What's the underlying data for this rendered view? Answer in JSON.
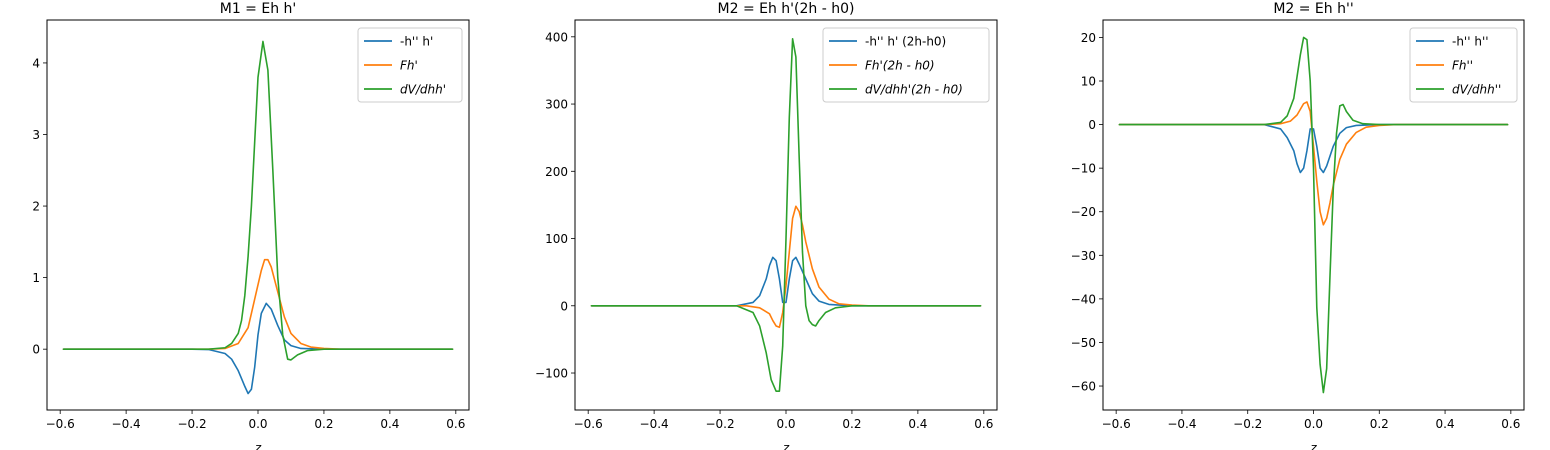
{
  "chart_data": [
    {
      "type": "line",
      "title": "M1 = Eh h'",
      "xlabel": "z",
      "ylabel": "",
      "xlim": [
        -0.64,
        0.64
      ],
      "ylim": [
        -0.85,
        4.6
      ],
      "xticks": [
        -0.6,
        -0.4,
        -0.2,
        0.0,
        0.2,
        0.4,
        0.6
      ],
      "xtick_labels": [
        "−0.6",
        "−0.4",
        "−0.2",
        "0.0",
        "0.2",
        "0.4",
        "0.6"
      ],
      "yticks": [
        0,
        1,
        2,
        3,
        4
      ],
      "ytick_labels": [
        "0",
        "1",
        "2",
        "3",
        "4"
      ],
      "legend_position": "top-right",
      "series": [
        {
          "name": "-h'' h'",
          "color": "#1f77b4",
          "points": [
            [
              -0.59,
              0
            ],
            [
              -0.2,
              0
            ],
            [
              -0.15,
              -0.005
            ],
            [
              -0.1,
              -0.06
            ],
            [
              -0.08,
              -0.14
            ],
            [
              -0.06,
              -0.3
            ],
            [
              -0.04,
              -0.52
            ],
            [
              -0.03,
              -0.62
            ],
            [
              -0.02,
              -0.56
            ],
            [
              -0.01,
              -0.25
            ],
            [
              0.0,
              0.2
            ],
            [
              0.01,
              0.5
            ],
            [
              0.025,
              0.64
            ],
            [
              0.04,
              0.56
            ],
            [
              0.06,
              0.33
            ],
            [
              0.08,
              0.13
            ],
            [
              0.1,
              0.05
            ],
            [
              0.13,
              0.01
            ],
            [
              0.2,
              0
            ],
            [
              0.59,
              0
            ]
          ]
        },
        {
          "name": "Fh'",
          "color": "#ff7f0e",
          "points": [
            [
              -0.59,
              0
            ],
            [
              -0.15,
              0
            ],
            [
              -0.1,
              0.01
            ],
            [
              -0.06,
              0.08
            ],
            [
              -0.03,
              0.3
            ],
            [
              -0.01,
              0.7
            ],
            [
              0.01,
              1.1
            ],
            [
              0.02,
              1.25
            ],
            [
              0.03,
              1.25
            ],
            [
              0.04,
              1.15
            ],
            [
              0.06,
              0.8
            ],
            [
              0.08,
              0.45
            ],
            [
              0.1,
              0.22
            ],
            [
              0.13,
              0.08
            ],
            [
              0.16,
              0.03
            ],
            [
              0.2,
              0.01
            ],
            [
              0.25,
              0
            ],
            [
              0.59,
              0
            ]
          ]
        },
        {
          "name": "dV/dhh'",
          "color": "#2ca02c",
          "points": [
            [
              -0.59,
              0
            ],
            [
              -0.15,
              0
            ],
            [
              -0.1,
              0.02
            ],
            [
              -0.08,
              0.08
            ],
            [
              -0.06,
              0.22
            ],
            [
              -0.05,
              0.4
            ],
            [
              -0.04,
              0.75
            ],
            [
              -0.03,
              1.3
            ],
            [
              -0.02,
              2.0
            ],
            [
              -0.01,
              2.9
            ],
            [
              0.0,
              3.8
            ],
            [
              0.015,
              4.3
            ],
            [
              0.03,
              3.9
            ],
            [
              0.045,
              2.5
            ],
            [
              0.06,
              1.0
            ],
            [
              0.075,
              0.2
            ],
            [
              0.09,
              -0.14
            ],
            [
              0.1,
              -0.15
            ],
            [
              0.12,
              -0.08
            ],
            [
              0.15,
              -0.02
            ],
            [
              0.2,
              0
            ],
            [
              0.59,
              0
            ]
          ]
        }
      ]
    },
    {
      "type": "line",
      "title": "M2 = Eh h'(2h - h0)",
      "xlabel": "z",
      "ylabel": "",
      "xlim": [
        -0.64,
        0.64
      ],
      "ylim": [
        -155,
        425
      ],
      "xticks": [
        -0.6,
        -0.4,
        -0.2,
        0.0,
        0.2,
        0.4,
        0.6
      ],
      "xtick_labels": [
        "−0.6",
        "−0.4",
        "−0.2",
        "0.0",
        "0.2",
        "0.4",
        "0.6"
      ],
      "yticks": [
        -100,
        0,
        100,
        200,
        300,
        400
      ],
      "ytick_labels": [
        "−100",
        "0",
        "100",
        "200",
        "300",
        "400"
      ],
      "legend_position": "top-right",
      "series": [
        {
          "name": "-h'' h' (2h-h0)",
          "color": "#1f77b4",
          "points": [
            [
              -0.59,
              0
            ],
            [
              -0.15,
              0
            ],
            [
              -0.1,
              5
            ],
            [
              -0.08,
              15
            ],
            [
              -0.06,
              40
            ],
            [
              -0.05,
              60
            ],
            [
              -0.04,
              72
            ],
            [
              -0.03,
              67
            ],
            [
              -0.02,
              40
            ],
            [
              -0.01,
              5
            ],
            [
              0.0,
              5
            ],
            [
              0.01,
              40
            ],
            [
              0.02,
              67
            ],
            [
              0.03,
              72
            ],
            [
              0.04,
              62
            ],
            [
              0.06,
              40
            ],
            [
              0.08,
              18
            ],
            [
              0.1,
              7
            ],
            [
              0.13,
              2
            ],
            [
              0.2,
              0
            ],
            [
              0.59,
              0
            ]
          ]
        },
        {
          "name": "Fh'(2h - h0)",
          "color": "#ff7f0e",
          "points": [
            [
              -0.59,
              0
            ],
            [
              -0.12,
              0
            ],
            [
              -0.08,
              -3
            ],
            [
              -0.05,
              -12
            ],
            [
              -0.04,
              -22
            ],
            [
              -0.03,
              -30
            ],
            [
              -0.02,
              -32
            ],
            [
              -0.01,
              -10
            ],
            [
              0.0,
              30
            ],
            [
              0.01,
              80
            ],
            [
              0.02,
              130
            ],
            [
              0.03,
              148
            ],
            [
              0.04,
              140
            ],
            [
              0.05,
              120
            ],
            [
              0.06,
              95
            ],
            [
              0.08,
              55
            ],
            [
              0.1,
              28
            ],
            [
              0.13,
              10
            ],
            [
              0.16,
              3
            ],
            [
              0.2,
              1
            ],
            [
              0.25,
              0
            ],
            [
              0.59,
              0
            ]
          ]
        },
        {
          "name": "dV/dhh'(2h - h0)",
          "color": "#2ca02c",
          "points": [
            [
              -0.59,
              0
            ],
            [
              -0.15,
              0
            ],
            [
              -0.1,
              -10
            ],
            [
              -0.08,
              -30
            ],
            [
              -0.06,
              -70
            ],
            [
              -0.045,
              -110
            ],
            [
              -0.03,
              -127
            ],
            [
              -0.02,
              -127
            ],
            [
              -0.01,
              -60
            ],
            [
              0.0,
              100
            ],
            [
              0.01,
              280
            ],
            [
              0.02,
              397
            ],
            [
              0.03,
              370
            ],
            [
              0.04,
              220
            ],
            [
              0.05,
              80
            ],
            [
              0.06,
              0
            ],
            [
              0.07,
              -22
            ],
            [
              0.08,
              -28
            ],
            [
              0.09,
              -30
            ],
            [
              0.1,
              -22
            ],
            [
              0.12,
              -10
            ],
            [
              0.15,
              -3
            ],
            [
              0.2,
              0
            ],
            [
              0.59,
              0
            ]
          ]
        }
      ]
    },
    {
      "type": "line",
      "title": "M2 = Eh h''",
      "xlabel": "z",
      "ylabel": "",
      "xlim": [
        -0.64,
        0.64
      ],
      "ylim": [
        -65.5,
        24
      ],
      "xticks": [
        -0.6,
        -0.4,
        -0.2,
        0.0,
        0.2,
        0.4,
        0.6
      ],
      "xtick_labels": [
        "−0.6",
        "−0.4",
        "−0.2",
        "0.0",
        "0.2",
        "0.4",
        "0.6"
      ],
      "yticks": [
        -60,
        -50,
        -40,
        -30,
        -20,
        -10,
        0,
        10,
        20
      ],
      "ytick_labels": [
        "−60",
        "−50",
        "−40",
        "−30",
        "−20",
        "−10",
        "0",
        "10",
        "20"
      ],
      "legend_position": "top-right",
      "series": [
        {
          "name": "-h'' h''",
          "color": "#1f77b4",
          "points": [
            [
              -0.59,
              0
            ],
            [
              -0.15,
              0
            ],
            [
              -0.1,
              -1
            ],
            [
              -0.08,
              -3
            ],
            [
              -0.06,
              -6
            ],
            [
              -0.05,
              -9
            ],
            [
              -0.04,
              -11
            ],
            [
              -0.03,
              -10
            ],
            [
              -0.02,
              -6
            ],
            [
              -0.01,
              -1
            ],
            [
              0.0,
              -1
            ],
            [
              0.01,
              -5
            ],
            [
              0.02,
              -10
            ],
            [
              0.03,
              -11
            ],
            [
              0.04,
              -9.5
            ],
            [
              0.06,
              -5
            ],
            [
              0.08,
              -2
            ],
            [
              0.1,
              -0.7
            ],
            [
              0.13,
              -0.2
            ],
            [
              0.2,
              0
            ],
            [
              0.59,
              0
            ]
          ]
        },
        {
          "name": "Fh''",
          "color": "#ff7f0e",
          "points": [
            [
              -0.59,
              0
            ],
            [
              -0.15,
              0
            ],
            [
              -0.1,
              0.2
            ],
            [
              -0.07,
              0.8
            ],
            [
              -0.05,
              2.2
            ],
            [
              -0.03,
              4.8
            ],
            [
              -0.02,
              5.2
            ],
            [
              -0.01,
              3
            ],
            [
              0.0,
              -5
            ],
            [
              0.01,
              -13
            ],
            [
              0.02,
              -20
            ],
            [
              0.03,
              -23
            ],
            [
              0.04,
              -21.5
            ],
            [
              0.05,
              -18
            ],
            [
              0.06,
              -14
            ],
            [
              0.08,
              -8
            ],
            [
              0.1,
              -4.5
            ],
            [
              0.13,
              -1.8
            ],
            [
              0.16,
              -0.6
            ],
            [
              0.2,
              -0.2
            ],
            [
              0.25,
              0
            ],
            [
              0.59,
              0
            ]
          ]
        },
        {
          "name": "dV/dhh''",
          "color": "#2ca02c",
          "points": [
            [
              -0.59,
              0
            ],
            [
              -0.15,
              0
            ],
            [
              -0.1,
              0.5
            ],
            [
              -0.08,
              2
            ],
            [
              -0.06,
              6
            ],
            [
              -0.05,
              11
            ],
            [
              -0.04,
              16
            ],
            [
              -0.03,
              20
            ],
            [
              -0.02,
              19.5
            ],
            [
              -0.01,
              10
            ],
            [
              0.0,
              -10
            ],
            [
              0.01,
              -42
            ],
            [
              0.02,
              -55
            ],
            [
              0.03,
              -61.5
            ],
            [
              0.04,
              -56
            ],
            [
              0.05,
              -35
            ],
            [
              0.06,
              -15
            ],
            [
              0.07,
              -2
            ],
            [
              0.08,
              4.3
            ],
            [
              0.09,
              4.6
            ],
            [
              0.1,
              3
            ],
            [
              0.12,
              1
            ],
            [
              0.15,
              0.2
            ],
            [
              0.2,
              0
            ],
            [
              0.59,
              0
            ]
          ]
        }
      ]
    }
  ]
}
